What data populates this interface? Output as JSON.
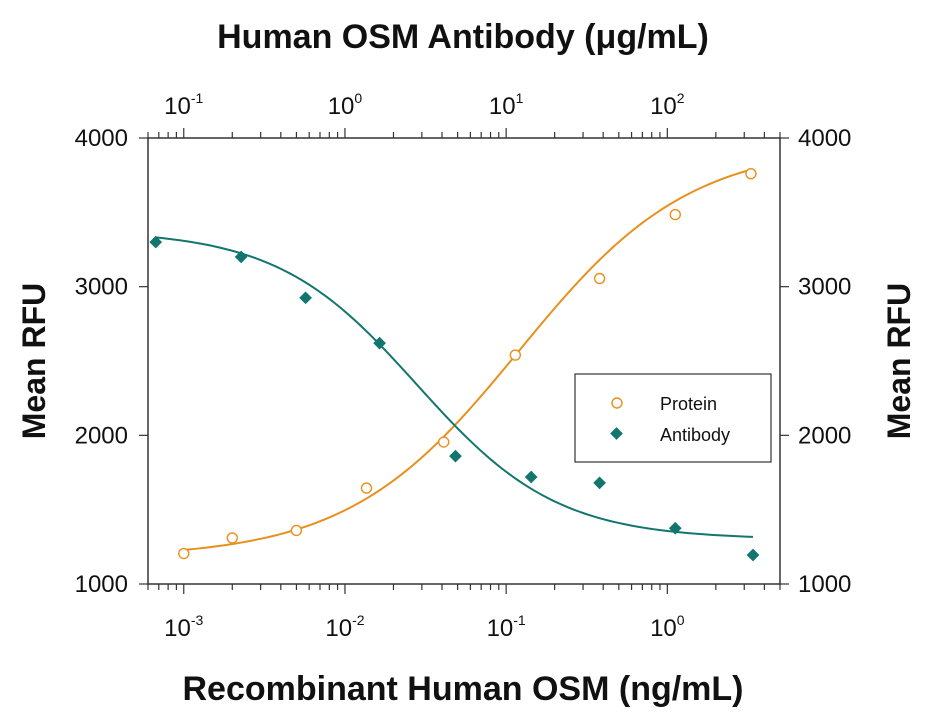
{
  "chart_data": {
    "type": "scatter",
    "title": "Human OSM Antibody (μg/mL)",
    "xlabel": "Recombinant Human OSM (ng/mL)",
    "x2label_parts": {
      "text": "Human OSM Antibody (",
      "mu": "μ",
      "rest": "g/mL)"
    },
    "ylabel": "Mean RFU",
    "y2label": "Mean RFU",
    "xscale": "log",
    "xlim": [
      0.0006,
      5
    ],
    "x2lim": [
      0.06,
      500
    ],
    "ylim": [
      1000,
      4000
    ],
    "yticks": [
      1000,
      2000,
      3000,
      4000
    ],
    "ytick_labels": [
      "1000",
      "2000",
      "3000",
      "4000"
    ],
    "xticks": [
      {
        "value": 0.001,
        "base": "10",
        "exp": "-3"
      },
      {
        "value": 0.01,
        "base": "10",
        "exp": "-2"
      },
      {
        "value": 0.1,
        "base": "10",
        "exp": "-1"
      },
      {
        "value": 1,
        "base": "10",
        "exp": "0"
      }
    ],
    "x2ticks": [
      {
        "value": 0.1,
        "base": "10",
        "exp": "-1"
      },
      {
        "value": 1,
        "base": "10",
        "exp": "0"
      },
      {
        "value": 10,
        "base": "10",
        "exp": "1"
      },
      {
        "value": 100,
        "base": "10",
        "exp": "2"
      }
    ],
    "legend": {
      "position": "right",
      "entries": [
        "Protein",
        "Antibody"
      ]
    },
    "series": [
      {
        "name": "Protein",
        "axis": "bottom",
        "marker": "open-circle",
        "color": "#E8901E",
        "x": [
          0.001,
          0.002,
          0.005,
          0.0136,
          0.041,
          0.114,
          0.38,
          1.12,
          3.3
        ],
        "y": [
          1205,
          1310,
          1360,
          1645,
          1955,
          2540,
          3055,
          3485,
          3760
        ],
        "fit": {
          "bottom": 1175,
          "top": 3960,
          "ec50": 0.12,
          "hill": 0.82
        }
      },
      {
        "name": "Antibody",
        "axis": "top",
        "marker": "filled-diamond",
        "color": "#12766F",
        "x": [
          0.067,
          0.227,
          0.57,
          1.64,
          4.85,
          14.3,
          38.0,
          112,
          340
        ],
        "y": [
          3300,
          3200,
          2925,
          2620,
          1860,
          1720,
          1680,
          1375,
          1195
        ],
        "fit": {
          "bottom": 1300,
          "top": 3380,
          "ec50": 2.8,
          "hill": 1.0
        }
      }
    ]
  }
}
